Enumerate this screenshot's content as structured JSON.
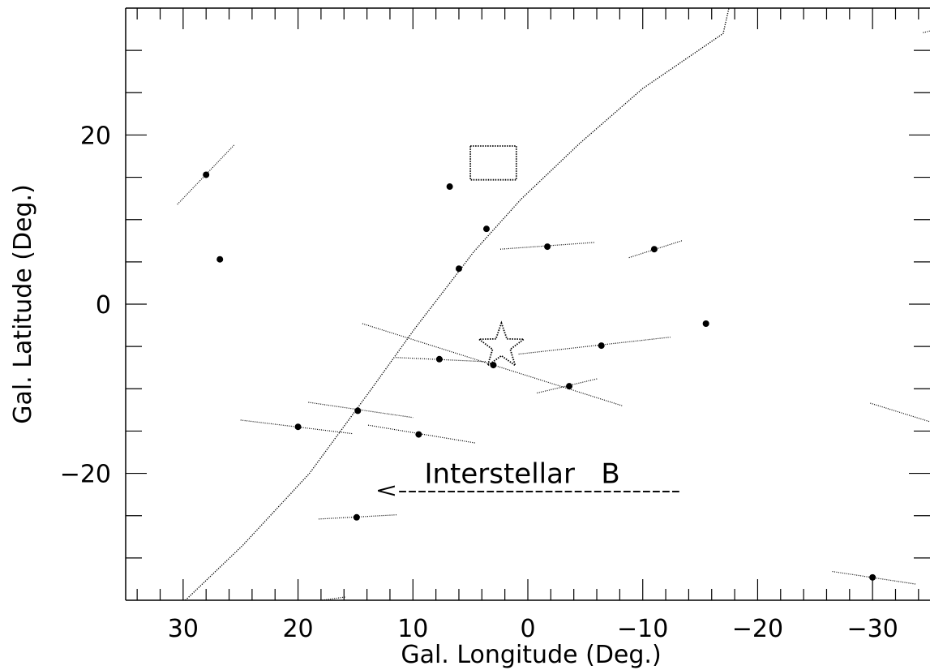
{
  "chart_data": {
    "type": "scatter",
    "xlabel": "Gal. Longitude (Deg.)",
    "ylabel": "Gal. Latitude (Deg.)",
    "xlim": [
      35,
      -35
    ],
    "ylim": [
      -35,
      35
    ],
    "x_ticks": [
      {
        "value": 30,
        "label": "30"
      },
      {
        "value": 20,
        "label": "20"
      },
      {
        "value": 10,
        "label": "10"
      },
      {
        "value": 0,
        "label": "0"
      },
      {
        "value": -10,
        "label": "−10"
      },
      {
        "value": -20,
        "label": "−20"
      },
      {
        "value": -30,
        "label": "−30"
      }
    ],
    "y_ticks": [
      {
        "value": 20,
        "label": "20"
      },
      {
        "value": 0,
        "label": "0"
      },
      {
        "value": -20,
        "label": "−20"
      }
    ],
    "points": [
      {
        "l": 28.0,
        "b": 15.3,
        "seg": [
          [
            30.5,
            11.8
          ],
          [
            25.5,
            18.9
          ]
        ]
      },
      {
        "l": 26.8,
        "b": 5.3
      },
      {
        "l": 6.8,
        "b": 13.9
      },
      {
        "l": 3.6,
        "b": 8.9
      },
      {
        "l": 6.0,
        "b": 4.2
      },
      {
        "l": -1.7,
        "b": 6.8,
        "seg": [
          [
            2.4,
            6.5
          ],
          [
            -5.8,
            7.3
          ]
        ]
      },
      {
        "l": -11.0,
        "b": 6.5,
        "seg": [
          [
            -8.8,
            5.5
          ],
          [
            -13.4,
            7.5
          ]
        ]
      },
      {
        "l": -15.5,
        "b": -2.3
      },
      {
        "l": -6.4,
        "b": -4.9,
        "seg": [
          [
            0.8,
            -5.9
          ],
          [
            -12.4,
            -3.9
          ]
        ]
      },
      {
        "l": 7.7,
        "b": -6.5,
        "seg": [
          [
            11.5,
            -6.3
          ],
          [
            3.6,
            -6.8
          ]
        ]
      },
      {
        "l": 3.0,
        "b": -7.2,
        "seg": [
          [
            14.4,
            -2.3
          ],
          [
            -8.2,
            -12.0
          ]
        ]
      },
      {
        "l": -3.6,
        "b": -9.7,
        "seg": [
          [
            -0.8,
            -10.5
          ],
          [
            -6.1,
            -8.8
          ]
        ]
      },
      {
        "l": 14.8,
        "b": -12.6,
        "seg": [
          [
            19.1,
            -11.6
          ],
          [
            10.0,
            -13.4
          ]
        ]
      },
      {
        "l": 20.0,
        "b": -14.5,
        "seg": [
          [
            25.0,
            -13.7
          ],
          [
            15.3,
            -15.3
          ]
        ]
      },
      {
        "l": 9.5,
        "b": -15.4,
        "seg": [
          [
            13.9,
            -14.3
          ],
          [
            4.6,
            -16.4
          ]
        ]
      },
      {
        "l": 14.9,
        "b": -25.2,
        "seg": [
          [
            18.2,
            -25.4
          ],
          [
            11.4,
            -24.9
          ]
        ]
      },
      {
        "l": -30.0,
        "b": -32.3,
        "seg": [
          [
            -26.5,
            -31.6
          ],
          [
            -33.8,
            -33.1
          ]
        ]
      }
    ],
    "extra_segments": [
      [
        [
          -29.8,
          -11.7
        ],
        [
          -35,
          -13.9
        ]
      ],
      [
        [
          -34.4,
          32.1
        ],
        [
          -35,
          32.3
        ]
      ],
      [
        [
          17.9,
          -35
        ],
        [
          15.8,
          -34.6
        ]
      ]
    ],
    "curve": [
      [
        29.8,
        -35
      ],
      [
        24.8,
        -28.5
      ],
      [
        19.0,
        -20
      ],
      [
        13.6,
        -10
      ],
      [
        9.9,
        -3
      ],
      [
        6.5,
        3
      ],
      [
        4.7,
        6.2
      ],
      [
        0.6,
        12.4
      ],
      [
        -4.5,
        19
      ],
      [
        -10.0,
        25.5
      ],
      [
        -17.0,
        32
      ],
      [
        -17.5,
        35
      ]
    ],
    "square_marker": {
      "l": 3.0,
      "b": 16.7,
      "size": 4
    },
    "star_marker": {
      "l": 2.3,
      "b": -5.0
    },
    "annotation": {
      "text": "Interstellar   B",
      "arrow_text": "<-----------------------------",
      "l": 9.0,
      "b": -20.0,
      "arrow_l": 13.3,
      "arrow_b": -22.0
    }
  }
}
